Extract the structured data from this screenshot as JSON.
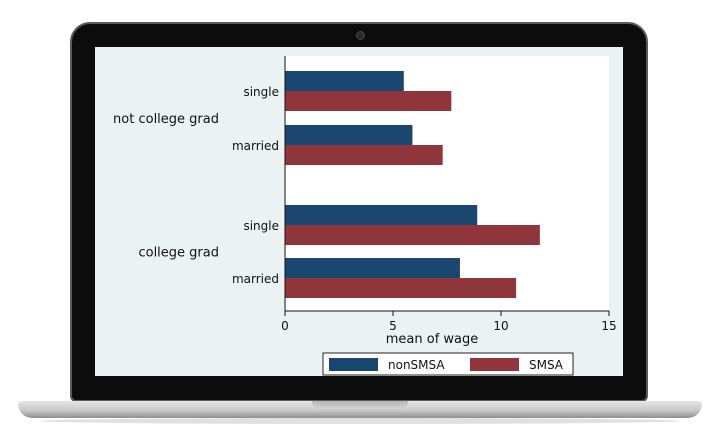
{
  "chart_data": {
    "type": "bar",
    "orientation": "horizontal",
    "groups": [
      {
        "label": "not college grad",
        "categories": [
          "single",
          "married"
        ]
      },
      {
        "label": "college grad",
        "categories": [
          "single",
          "married"
        ]
      }
    ],
    "series": [
      {
        "name": "nonSMSA",
        "color": "#1a476f",
        "values": [
          5.5,
          5.9,
          8.9,
          8.1
        ]
      },
      {
        "name": "SMSA",
        "color": "#90353b",
        "values": [
          7.7,
          7.3,
          11.8,
          10.7
        ]
      }
    ],
    "xlabel": "mean of wage",
    "xlim": [
      0,
      15
    ],
    "xticks": [
      0,
      5,
      10,
      15
    ],
    "legend_position": "bottom"
  }
}
